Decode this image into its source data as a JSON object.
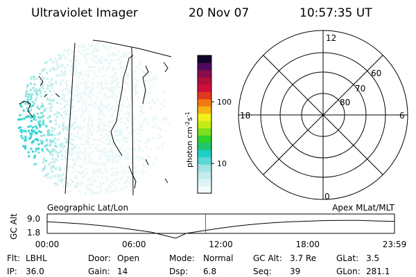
{
  "header": {
    "instrument": "Ultraviolet Imager",
    "date": "20 Nov 07",
    "time": "10:57:35 UT"
  },
  "colorbar": {
    "unit_label": "photon cm",
    "unit_exp1": "-2",
    "unit_s": "s",
    "unit_exp2": "-1",
    "ticks": [
      {
        "label": "100",
        "value": 100
      },
      {
        "label": "10",
        "value": 10
      }
    ],
    "colors": [
      "#f2fbfb",
      "#ddf3f3",
      "#c2ecec",
      "#9fe3e3",
      "#5ad6d6",
      "#1fd0c8",
      "#22c56f",
      "#2ed12e",
      "#7ddf1f",
      "#c4ec16",
      "#f2f21a",
      "#f7b415",
      "#f27a12",
      "#e0391f",
      "#d10f3c",
      "#b0103a",
      "#8a0c4c",
      "#4d0a5c",
      "#14052b"
    ]
  },
  "polar": {
    "mlt_labels": {
      "top": "12",
      "left": "18",
      "right": "6",
      "bottom": "0"
    },
    "lat_labels": [
      "60",
      "70",
      "80"
    ]
  },
  "timeline": {
    "y_label": "GC Alt",
    "y_ticks": [
      "9.0",
      "1.8"
    ],
    "left_caption": "Geographic Lat/Lon",
    "right_caption": "Apex  MLat/MLT",
    "x_ticks": [
      "00:00",
      "06:00",
      "12:00",
      "18:00",
      "23:59"
    ],
    "current_time_fraction": 0.456,
    "orbit_curve": [
      [
        0.0,
        0.6
      ],
      [
        0.05,
        0.55
      ],
      [
        0.1,
        0.49
      ],
      [
        0.15,
        0.41
      ],
      [
        0.2,
        0.31
      ],
      [
        0.25,
        0.19
      ],
      [
        0.3,
        0.06
      ],
      [
        0.37,
        -0.25
      ],
      [
        0.4,
        0.0
      ],
      [
        0.45,
        0.14
      ],
      [
        0.5,
        0.27
      ],
      [
        0.55,
        0.39
      ],
      [
        0.6,
        0.48
      ],
      [
        0.65,
        0.55
      ],
      [
        0.7,
        0.6
      ],
      [
        0.75,
        0.63
      ],
      [
        0.8,
        0.66
      ],
      [
        0.85,
        0.67
      ],
      [
        0.9,
        0.67
      ],
      [
        0.95,
        0.64
      ],
      [
        1.0,
        0.62
      ]
    ]
  },
  "footer": {
    "rows": [
      [
        {
          "key": "Flt:",
          "value": "LBHL"
        },
        {
          "key": "Door:",
          "value": "Open"
        },
        {
          "key": "Mode:",
          "value": "Normal"
        },
        {
          "key": "GC Alt:",
          "value": "3.7 Re"
        },
        {
          "key": "GLat:",
          "value": "3.5"
        }
      ],
      [
        {
          "key": "IP:",
          "value": "36.0"
        },
        {
          "key": "Gain:",
          "value": "14"
        },
        {
          "key": "Dsp:",
          "value": "6.8"
        },
        {
          "key": "Seq:",
          "value": "39"
        },
        {
          "key": "GLon:",
          "value": "281.1"
        }
      ]
    ]
  }
}
